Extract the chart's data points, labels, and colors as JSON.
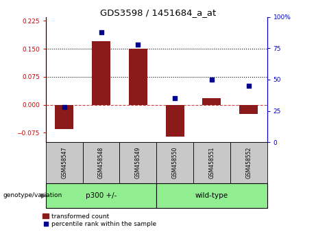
{
  "title": "GDS3598 / 1451684_a_at",
  "samples": [
    "GSM458547",
    "GSM458548",
    "GSM458549",
    "GSM458550",
    "GSM458551",
    "GSM458552"
  ],
  "bar_values": [
    -0.065,
    0.17,
    0.15,
    -0.085,
    0.018,
    -0.025
  ],
  "percentile_values": [
    28,
    88,
    78,
    35,
    50,
    45
  ],
  "bar_color": "#8B1A1A",
  "scatter_color": "#00008B",
  "ylim_left": [
    -0.1,
    0.235
  ],
  "ylim_right": [
    0,
    100
  ],
  "yticks_left": [
    -0.075,
    0,
    0.075,
    0.15,
    0.225
  ],
  "yticks_right": [
    0,
    25,
    50,
    75,
    100
  ],
  "hlines": [
    0.075,
    0.15
  ],
  "dashed_hline": 0.0,
  "group_boundaries": [
    [
      0,
      2,
      "p300 +/-"
    ],
    [
      3,
      5,
      "wild-type"
    ]
  ],
  "group_color": "#90EE90",
  "xlabel_group": "genotype/variation",
  "legend_bar_label": "transformed count",
  "legend_scatter_label": "percentile rank within the sample",
  "bar_width": 0.5,
  "tick_label_color_left": "#CC0000",
  "tick_label_color_right": "#0000CC",
  "bottom_panel_color": "#C8C8C8"
}
